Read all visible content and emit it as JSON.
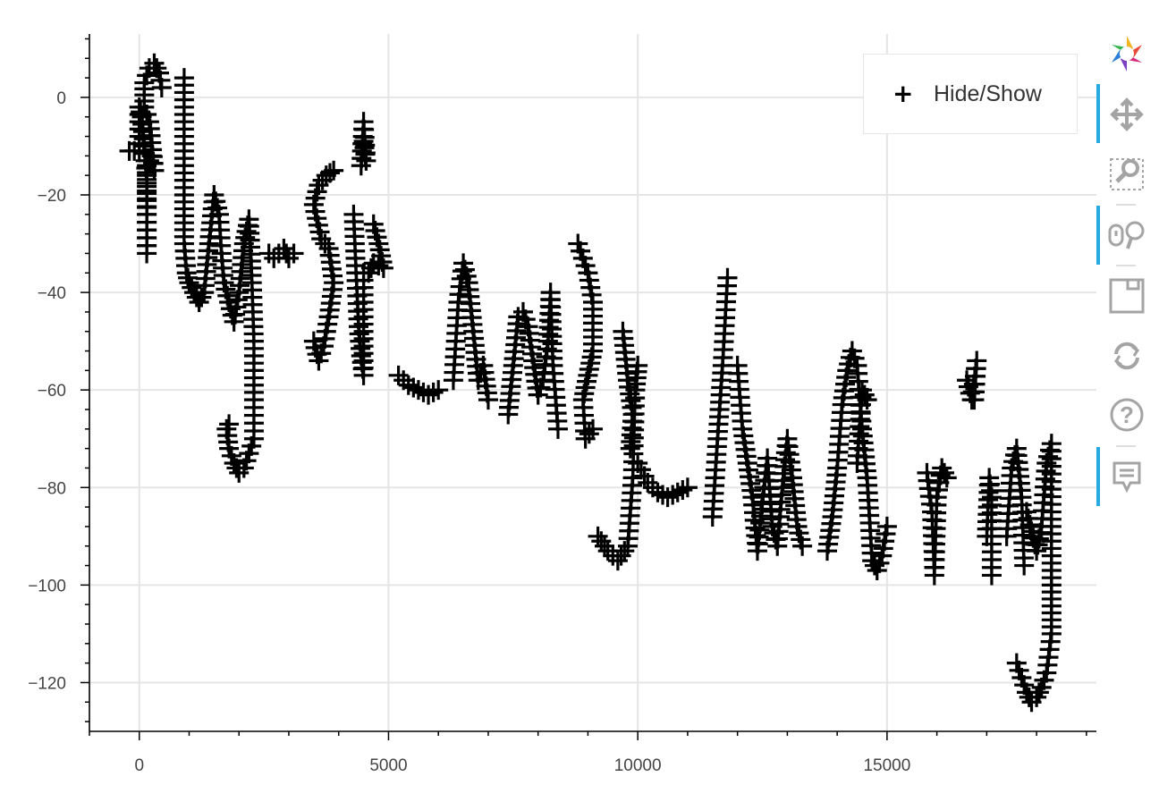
{
  "chart_data": {
    "type": "scatter",
    "marker": "cross",
    "color": "#000000",
    "xlim": [
      -1000,
      19200
    ],
    "ylim": [
      -130,
      13
    ],
    "x_ticks": [
      0,
      5000,
      10000,
      15000
    ],
    "y_ticks": [
      0,
      -20,
      -40,
      -60,
      -80,
      -100,
      -120
    ],
    "x_tick_labels": [
      "0",
      "5000",
      "10000",
      "15000"
    ],
    "y_tick_labels": [
      "0",
      "−20",
      "−40",
      "−60",
      "−80",
      "−100",
      "−120"
    ],
    "grid": true,
    "legend_position": "top-right",
    "series": [
      {
        "name": "Hide/Show",
        "strokes": [
          [
            [
              -200,
              -11
            ],
            [
              0,
              -11
            ],
            [
              0,
              -2
            ],
            [
              50,
              -4
            ],
            [
              100,
              -10
            ],
            [
              150,
              -16
            ],
            [
              150,
              -24
            ],
            [
              150,
              -32
            ],
            [
              150,
              -24
            ],
            [
              150,
              -14
            ],
            [
              250,
              -12
            ],
            [
              300,
              -15
            ],
            [
              200,
              -5
            ],
            [
              100,
              -2
            ],
            [
              100,
              3
            ],
            [
              200,
              6
            ],
            [
              300,
              7
            ],
            [
              400,
              5
            ],
            [
              450,
              2
            ]
          ],
          [
            [
              900,
              4
            ],
            [
              900,
              -8
            ],
            [
              900,
              -20
            ],
            [
              900,
              -30
            ],
            [
              950,
              -36
            ],
            [
              1000,
              -38
            ],
            [
              1100,
              -40
            ],
            [
              1200,
              -42
            ],
            [
              1300,
              -40
            ],
            [
              1400,
              -30
            ],
            [
              1500,
              -20
            ],
            [
              1600,
              -24
            ],
            [
              1650,
              -32
            ],
            [
              1700,
              -38
            ],
            [
              1800,
              -42
            ],
            [
              1900,
              -46
            ],
            [
              2000,
              -40
            ],
            [
              2100,
              -30
            ],
            [
              2200,
              -25
            ],
            [
              2250,
              -35
            ],
            [
              2300,
              -50
            ],
            [
              2300,
              -62
            ],
            [
              2300,
              -70
            ],
            [
              2200,
              -73
            ],
            [
              2100,
              -76
            ],
            [
              2000,
              -77
            ],
            [
              1900,
              -75
            ],
            [
              1800,
              -72
            ],
            [
              1750,
              -68
            ],
            [
              1800,
              -67
            ]
          ],
          [
            [
              2600,
              -32
            ],
            [
              2700,
              -33
            ],
            [
              2800,
              -32
            ],
            [
              2900,
              -31
            ],
            [
              3000,
              -33
            ],
            [
              3100,
              -32
            ]
          ],
          [
            [
              3500,
              -50
            ],
            [
              3600,
              -54
            ],
            [
              3700,
              -51
            ],
            [
              3800,
              -45
            ],
            [
              3900,
              -38
            ],
            [
              3800,
              -31
            ],
            [
              3650,
              -29
            ],
            [
              3500,
              -22
            ],
            [
              3600,
              -18
            ],
            [
              3750,
              -16
            ],
            [
              3900,
              -15
            ]
          ],
          [
            [
              4300,
              -24
            ],
            [
              4350,
              -36
            ],
            [
              4400,
              -47
            ],
            [
              4450,
              -53
            ],
            [
              4500,
              -57
            ],
            [
              4500,
              -45
            ],
            [
              4500,
              -36
            ]
          ],
          [
            [
              4450,
              -14
            ],
            [
              4500,
              -5
            ],
            [
              4550,
              -13
            ],
            [
              4500,
              -9
            ]
          ],
          [
            [
              4700,
              -26
            ],
            [
              4800,
              -30
            ],
            [
              4900,
              -35
            ],
            [
              4700,
              -34
            ],
            [
              4600,
              -36
            ]
          ],
          [
            [
              5200,
              -57
            ],
            [
              5400,
              -59
            ],
            [
              5600,
              -60
            ],
            [
              5800,
              -61
            ],
            [
              6000,
              -60
            ]
          ],
          [
            [
              6300,
              -58
            ],
            [
              6400,
              -42
            ],
            [
              6500,
              -34
            ],
            [
              6600,
              -38
            ],
            [
              6700,
              -48
            ],
            [
              6800,
              -58
            ],
            [
              6900,
              -55
            ],
            [
              7000,
              -62
            ]
          ],
          [
            [
              7400,
              -65
            ],
            [
              7500,
              -55
            ],
            [
              7600,
              -45
            ],
            [
              7700,
              -44
            ],
            [
              7800,
              -47
            ],
            [
              7900,
              -54
            ],
            [
              8000,
              -61
            ],
            [
              8100,
              -58
            ],
            [
              8200,
              -50
            ],
            [
              8250,
              -40
            ],
            [
              8300,
              -55
            ],
            [
              8400,
              -68
            ]
          ],
          [
            [
              8800,
              -30
            ],
            [
              9000,
              -36
            ],
            [
              9100,
              -42
            ],
            [
              9100,
              -52
            ],
            [
              9000,
              -57
            ],
            [
              8900,
              -62
            ],
            [
              8950,
              -70
            ],
            [
              9100,
              -68
            ]
          ],
          [
            [
              9200,
              -90
            ],
            [
              9400,
              -93
            ],
            [
              9600,
              -95
            ],
            [
              9800,
              -92
            ],
            [
              9900,
              -78
            ],
            [
              9950,
              -60
            ],
            [
              10000,
              -55
            ]
          ],
          [
            [
              9700,
              -48
            ],
            [
              9800,
              -58
            ],
            [
              9900,
              -65
            ],
            [
              9850,
              -72
            ]
          ],
          [
            [
              10000,
              -75
            ],
            [
              10200,
              -79
            ],
            [
              10400,
              -81
            ],
            [
              10600,
              -82
            ],
            [
              10800,
              -81
            ],
            [
              11000,
              -80
            ]
          ],
          [
            [
              11500,
              -86
            ],
            [
              11600,
              -70
            ],
            [
              11700,
              -55
            ],
            [
              11800,
              -37
            ]
          ],
          [
            [
              12000,
              -55
            ],
            [
              12100,
              -68
            ],
            [
              12200,
              -75
            ],
            [
              12300,
              -82
            ],
            [
              12400,
              -93
            ],
            [
              12500,
              -83
            ],
            [
              12600,
              -74
            ],
            [
              12700,
              -88
            ],
            [
              12800,
              -92
            ],
            [
              12900,
              -80
            ],
            [
              13000,
              -70
            ],
            [
              13100,
              -78
            ],
            [
              13200,
              -88
            ],
            [
              13300,
              -92
            ]
          ],
          [
            [
              13800,
              -93
            ],
            [
              13900,
              -86
            ],
            [
              14000,
              -76
            ],
            [
              14100,
              -63
            ],
            [
              14200,
              -56
            ],
            [
              14300,
              -52
            ],
            [
              14400,
              -55
            ],
            [
              14500,
              -68
            ],
            [
              14600,
              -78
            ],
            [
              14700,
              -95
            ],
            [
              14800,
              -97
            ],
            [
              14900,
              -94
            ],
            [
              15000,
              -88
            ]
          ],
          [
            [
              14400,
              -75
            ],
            [
              14500,
              -60
            ],
            [
              14600,
              -62
            ]
          ],
          [
            [
              15800,
              -77
            ],
            [
              15900,
              -85
            ],
            [
              15950,
              -98
            ],
            [
              16000,
              -82
            ],
            [
              16100,
              -76
            ],
            [
              16200,
              -78
            ]
          ],
          [
            [
              16600,
              -58
            ],
            [
              16700,
              -62
            ],
            [
              16800,
              -54
            ],
            [
              16750,
              -62
            ]
          ],
          [
            [
              17000,
              -90
            ],
            [
              17050,
              -78
            ],
            [
              17100,
              -82
            ],
            [
              17100,
              -98
            ]
          ],
          [
            [
              17400,
              -90
            ],
            [
              17500,
              -76
            ],
            [
              17600,
              -72
            ],
            [
              17700,
              -82
            ],
            [
              17750,
              -96
            ]
          ],
          [
            [
              17800,
              -85
            ],
            [
              18000,
              -93
            ],
            [
              18100,
              -88
            ],
            [
              18200,
              -75
            ],
            [
              18300,
              -71
            ],
            [
              18300,
              -85
            ],
            [
              18300,
              -100
            ],
            [
              18300,
              -110
            ],
            [
              18200,
              -118
            ],
            [
              18100,
              -121
            ],
            [
              18000,
              -123
            ],
            [
              17900,
              -124
            ],
            [
              17800,
              -122
            ],
            [
              17700,
              -119
            ],
            [
              17600,
              -116
            ]
          ]
        ]
      }
    ]
  },
  "legend": {
    "label": "Hide/Show",
    "glyph": "+"
  },
  "toolbar": {
    "tools": [
      {
        "name": "bokeh-logo-icon"
      },
      {
        "name": "pan-icon",
        "active": true
      },
      {
        "name": "box-zoom-icon",
        "active": false
      },
      {
        "name": "wheel-zoom-icon",
        "active": true
      },
      {
        "name": "save-icon",
        "active": false
      },
      {
        "name": "reset-icon",
        "active": false
      },
      {
        "name": "help-icon",
        "active": false
      },
      {
        "name": "hover-icon",
        "active": true
      }
    ],
    "accent_color": "#26aae1",
    "icon_color": "#a4a4a4"
  }
}
